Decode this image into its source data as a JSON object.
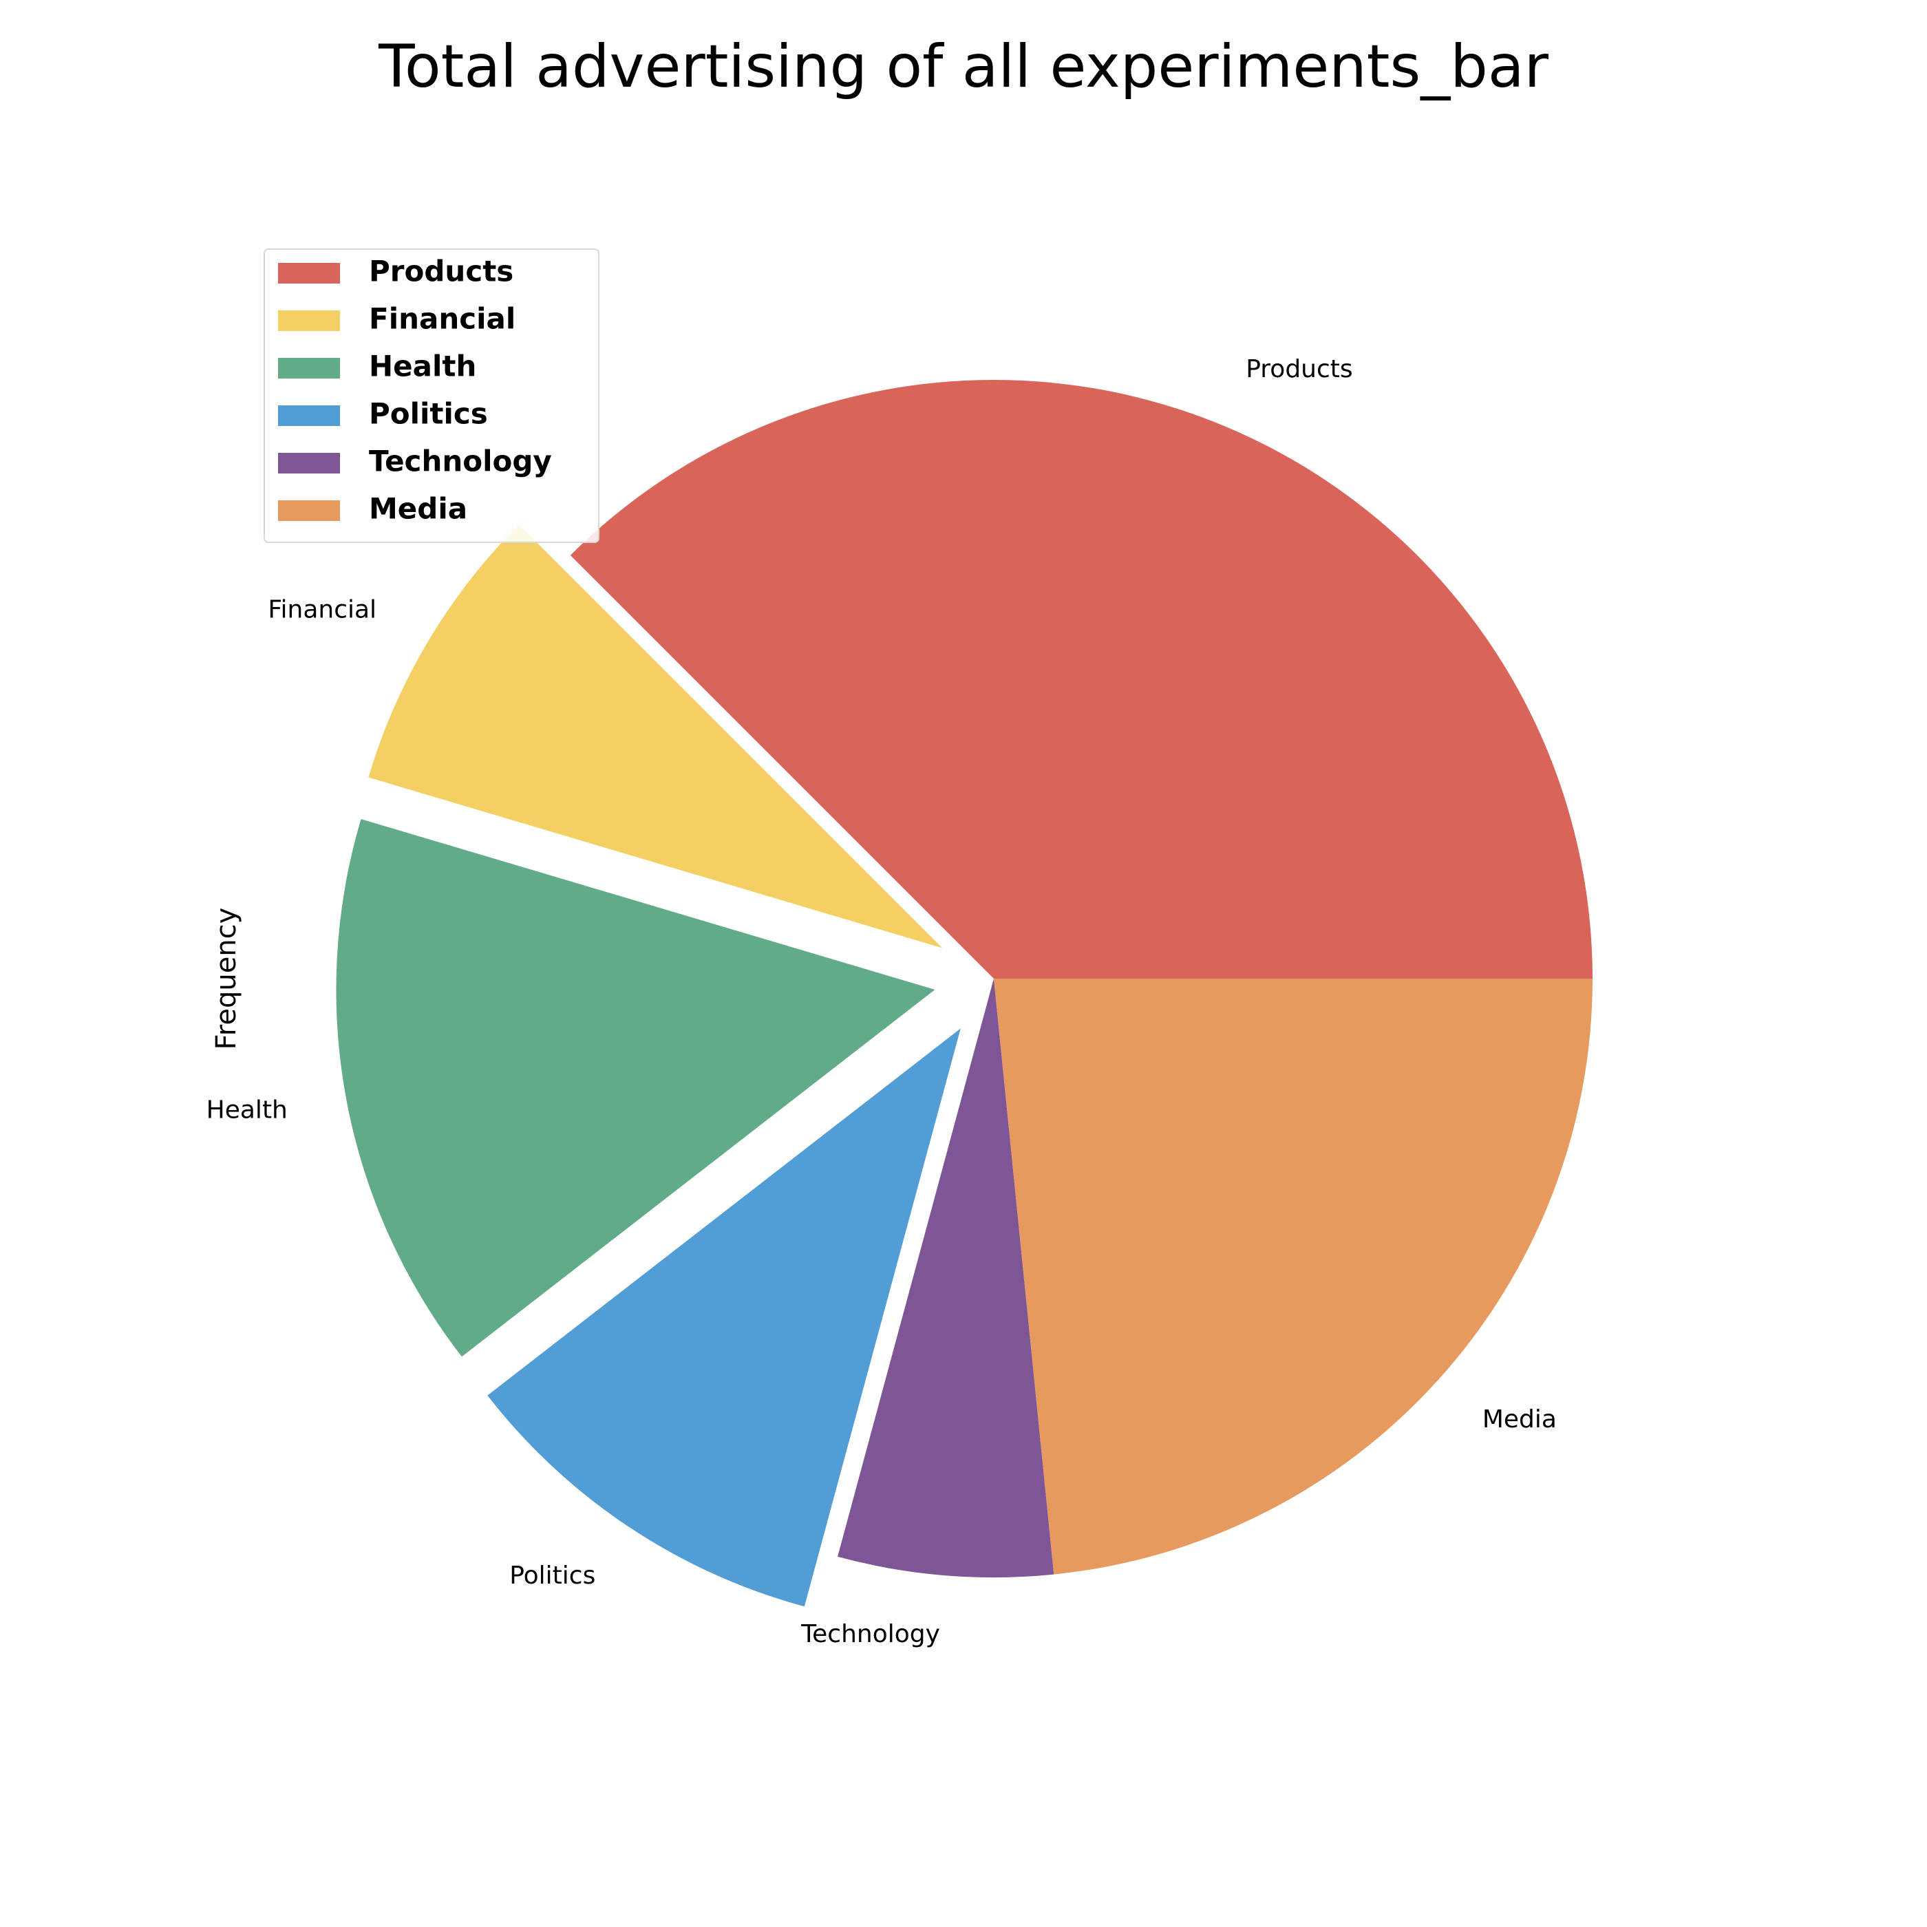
{
  "chart_data": {
    "type": "pie",
    "title": "Total advertising of all experiments_bar",
    "ylabel": "Frequency",
    "categories": [
      "Products",
      "Financial",
      "Health",
      "Politics",
      "Technology",
      "Media"
    ],
    "values": [
      37.5,
      7.9,
      15.1,
      10.3,
      5.8,
      23.4
    ],
    "colors": [
      "#d9645a",
      "#f4cf64",
      "#61ab88",
      "#529dd5",
      "#7e5595",
      "#e79a5f"
    ],
    "exploded": [
      false,
      true,
      true,
      true,
      false,
      false
    ],
    "start_angle_deg": 0,
    "direction": "counterclockwise",
    "legend": {
      "position": "upper-left",
      "entries": [
        "Products",
        "Financial",
        "Health",
        "Politics",
        "Technology",
        "Media"
      ]
    }
  }
}
